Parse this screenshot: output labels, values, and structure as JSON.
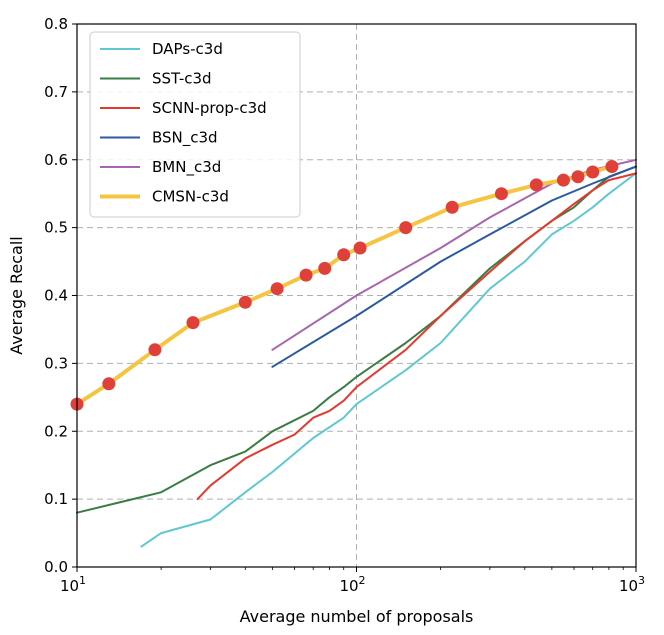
{
  "chart_data": {
    "type": "line",
    "xlabel": "Average numbel of proposals",
    "ylabel": "Average Recall",
    "xscale": "log",
    "xlim": [
      10,
      1000
    ],
    "ylim": [
      0.0,
      0.8
    ],
    "xticks": [
      {
        "value": 10,
        "base": "10",
        "exp": "1"
      },
      {
        "value": 100,
        "base": "10",
        "exp": "2"
      },
      {
        "value": 1000,
        "base": "10",
        "exp": "3"
      }
    ],
    "yticks": [
      "0.0",
      "0.1",
      "0.2",
      "0.3",
      "0.4",
      "0.5",
      "0.6",
      "0.7",
      "0.8"
    ],
    "grid": "dashed",
    "legend_position": "top-left",
    "series": [
      {
        "name": "DAPs-c3d",
        "color": "#5fc8d0",
        "x": [
          17,
          20,
          30,
          40,
          50,
          70,
          90,
          100,
          150,
          200,
          300,
          400,
          500,
          600,
          700,
          800,
          1000
        ],
        "y": [
          0.03,
          0.05,
          0.07,
          0.11,
          0.14,
          0.19,
          0.22,
          0.24,
          0.29,
          0.33,
          0.41,
          0.45,
          0.49,
          0.51,
          0.53,
          0.55,
          0.58
        ]
      },
      {
        "name": "SST-c3d",
        "color": "#3a7d44",
        "x": [
          10,
          20,
          30,
          40,
          50,
          70,
          80,
          90,
          100,
          150,
          200,
          300,
          400,
          500,
          600,
          700,
          800,
          1000
        ],
        "y": [
          0.08,
          0.11,
          0.15,
          0.17,
          0.2,
          0.23,
          0.25,
          0.265,
          0.28,
          0.33,
          0.37,
          0.44,
          0.48,
          0.51,
          0.53,
          0.555,
          0.575,
          0.59
        ]
      },
      {
        "name": "SCNN-prop-c3d",
        "color": "#e43a2e",
        "x": [
          27,
          30,
          40,
          50,
          60,
          70,
          80,
          90,
          100,
          150,
          200,
          300,
          400,
          500,
          600,
          700,
          800,
          1000
        ],
        "y": [
          0.1,
          0.12,
          0.16,
          0.18,
          0.195,
          0.22,
          0.23,
          0.245,
          0.265,
          0.32,
          0.37,
          0.435,
          0.48,
          0.51,
          0.535,
          0.555,
          0.57,
          0.58
        ]
      },
      {
        "name": "BSN_c3d",
        "color": "#2b5aa0",
        "x": [
          50,
          100,
          200,
          300,
          500,
          700,
          1000
        ],
        "y": [
          0.295,
          0.37,
          0.45,
          0.49,
          0.54,
          0.565,
          0.59
        ]
      },
      {
        "name": "BMN_c3d",
        "color": "#a865b0",
        "x": [
          50,
          100,
          200,
          300,
          500,
          700,
          1000
        ],
        "y": [
          0.32,
          0.4,
          0.47,
          0.515,
          0.565,
          0.585,
          0.6
        ]
      },
      {
        "name": "CMSN-c3d",
        "color": "#f5c542",
        "marker_color": "#e0403a",
        "x": [
          10,
          13,
          19,
          26,
          40,
          52,
          66,
          77,
          90,
          103,
          150,
          220,
          330,
          440,
          550,
          620,
          700,
          820
        ],
        "y": [
          0.24,
          0.27,
          0.32,
          0.36,
          0.39,
          0.41,
          0.43,
          0.44,
          0.46,
          0.47,
          0.5,
          0.53,
          0.55,
          0.563,
          0.57,
          0.575,
          0.582,
          0.59
        ]
      }
    ]
  }
}
